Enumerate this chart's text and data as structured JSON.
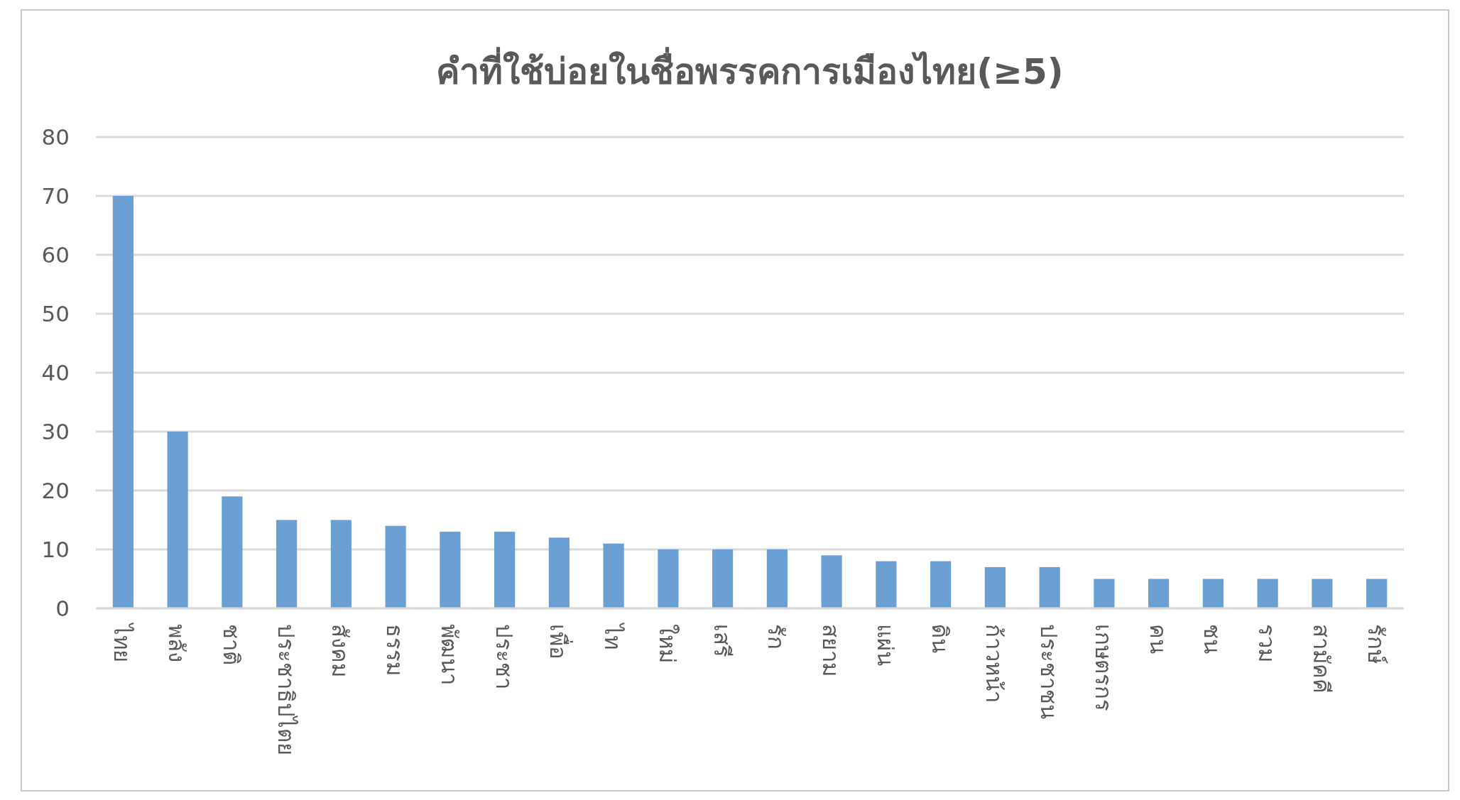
{
  "chart_data": {
    "type": "bar",
    "title": "คำที่ใช้บ่อยในชื่อพรรคการเมืองไทย(≥5)",
    "categories": [
      "ไทย",
      "พลัง",
      "ชาติ",
      "ประชาธิปไตย",
      "สังคม",
      "ธรรม",
      "พัฒนา",
      "ประชา",
      "เพื่อ",
      "ไท",
      "ใหม่",
      "เสรี",
      "รัก",
      "สยาม",
      "แผ่น",
      "ดิน",
      "ก้าวหน้า",
      "ประชาชน",
      "เกษตรกร",
      "คน",
      "ชน",
      "รวม",
      "สามัคคี",
      "รักษ์"
    ],
    "values": [
      70,
      30,
      19,
      15,
      15,
      14,
      13,
      13,
      12,
      11,
      10,
      10,
      10,
      9,
      8,
      8,
      7,
      7,
      5,
      5,
      5,
      5,
      5,
      5
    ],
    "color": "#6a9fd4",
    "ylim": [
      0,
      80
    ],
    "yticks": [
      0,
      10,
      20,
      30,
      40,
      50,
      60,
      70,
      80
    ],
    "grid": "y"
  }
}
